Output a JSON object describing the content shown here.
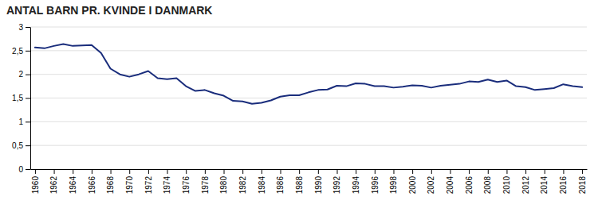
{
  "chart_data": {
    "type": "line",
    "title": "ANTAL BARN PR. KVINDE I DANMARK",
    "color": "#1a2d7c",
    "x": [
      1960,
      1961,
      1962,
      1963,
      1964,
      1965,
      1966,
      1967,
      1968,
      1969,
      1970,
      1971,
      1972,
      1973,
      1974,
      1975,
      1976,
      1977,
      1978,
      1979,
      1980,
      1981,
      1982,
      1983,
      1984,
      1985,
      1986,
      1987,
      1988,
      1989,
      1990,
      1991,
      1992,
      1993,
      1994,
      1995,
      1996,
      1997,
      1998,
      1999,
      2000,
      2001,
      2002,
      2003,
      2004,
      2005,
      2006,
      2007,
      2008,
      2009,
      2010,
      2011,
      2012,
      2013,
      2014,
      2015,
      2016,
      2017,
      2018
    ],
    "values": [
      2.57,
      2.55,
      2.6,
      2.64,
      2.6,
      2.61,
      2.62,
      2.45,
      2.12,
      2.0,
      1.95,
      2.0,
      2.07,
      1.92,
      1.9,
      1.92,
      1.75,
      1.65,
      1.67,
      1.6,
      1.55,
      1.44,
      1.43,
      1.38,
      1.4,
      1.45,
      1.53,
      1.56,
      1.56,
      1.62,
      1.67,
      1.68,
      1.76,
      1.75,
      1.81,
      1.8,
      1.75,
      1.75,
      1.72,
      1.74,
      1.77,
      1.76,
      1.72,
      1.76,
      1.78,
      1.8,
      1.85,
      1.84,
      1.89,
      1.84,
      1.87,
      1.75,
      1.73,
      1.67,
      1.69,
      1.71,
      1.79,
      1.75,
      1.73
    ],
    "xlim": [
      1959.5,
      2018.5
    ],
    "xticks": [
      1960,
      1962,
      1964,
      1966,
      1968,
      1970,
      1972,
      1974,
      1976,
      1978,
      1980,
      1982,
      1984,
      1986,
      1988,
      1990,
      1992,
      1994,
      1996,
      1998,
      2000,
      2002,
      2004,
      2006,
      2008,
      2010,
      2012,
      2014,
      2016,
      2018
    ],
    "ylim": [
      0,
      3.0
    ],
    "yticks": [
      0,
      {
        "value": 0.5,
        "label": "0,5"
      },
      1,
      {
        "value": 1.5,
        "label": "1,5"
      },
      2,
      {
        "value": 2.5,
        "label": "2,5"
      },
      3
    ],
    "grid": true
  }
}
